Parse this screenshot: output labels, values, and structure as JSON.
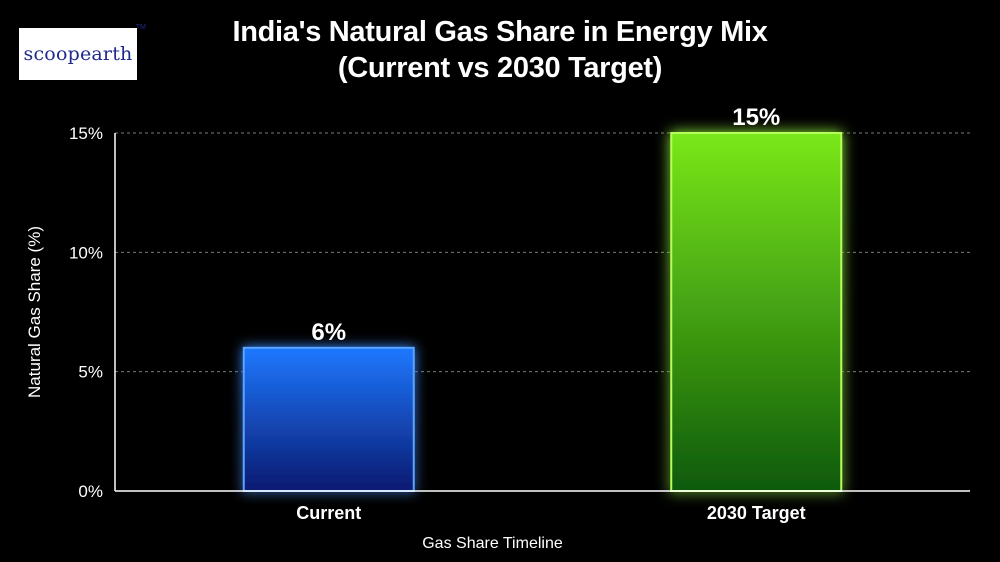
{
  "logo": {
    "text": "scoopearth",
    "tm": "TM"
  },
  "colors": {
    "background": "#000000",
    "current_bar": "#1a6cff",
    "target_bar": "#6ee012",
    "grid": "#7a7a7a"
  },
  "chart_data": {
    "type": "bar",
    "title": "India's Natural Gas Share in Energy Mix",
    "subtitle": "(Current vs 2030 Target)",
    "xlabel": "Gas Share Timeline",
    "ylabel": "Natural Gas Share (%)",
    "categories": [
      "Current",
      "2030 Target"
    ],
    "values": [
      6,
      15
    ],
    "data_labels": [
      "6%",
      "15%"
    ],
    "ylim": [
      0,
      15
    ],
    "yticks": [
      0,
      5,
      10,
      15
    ],
    "ytick_labels": [
      "0%",
      "5%",
      "10%",
      "15%"
    ],
    "grid": true,
    "bar_colors": [
      "#1a6cff",
      "#6ee012"
    ]
  }
}
